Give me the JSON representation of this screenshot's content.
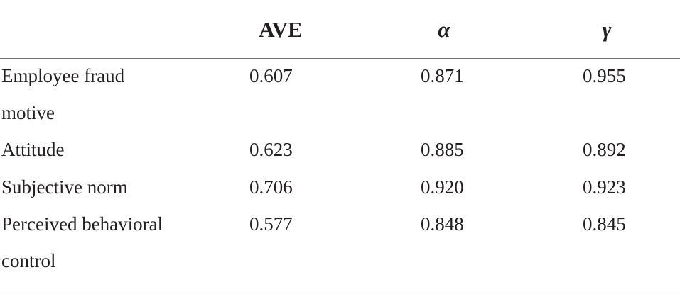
{
  "table": {
    "headers": [
      "",
      "AVE",
      "α",
      "γ"
    ],
    "rows": [
      {
        "label_line1": "Employee fraud",
        "label_line2": "motive",
        "ave": "0.607",
        "alpha": "0.871",
        "gamma": "0.955"
      },
      {
        "label_line1": "Attitude",
        "label_line2": "",
        "ave": "0.623",
        "alpha": "0.885",
        "gamma": "0.892"
      },
      {
        "label_line1": "Subjective norm",
        "label_line2": "",
        "ave": "0.706",
        "alpha": "0.920",
        "gamma": "0.923"
      },
      {
        "label_line1": "Perceived behavioral",
        "label_line2": "control",
        "ave": "0.577",
        "alpha": "0.848",
        "gamma": "0.845"
      }
    ]
  }
}
